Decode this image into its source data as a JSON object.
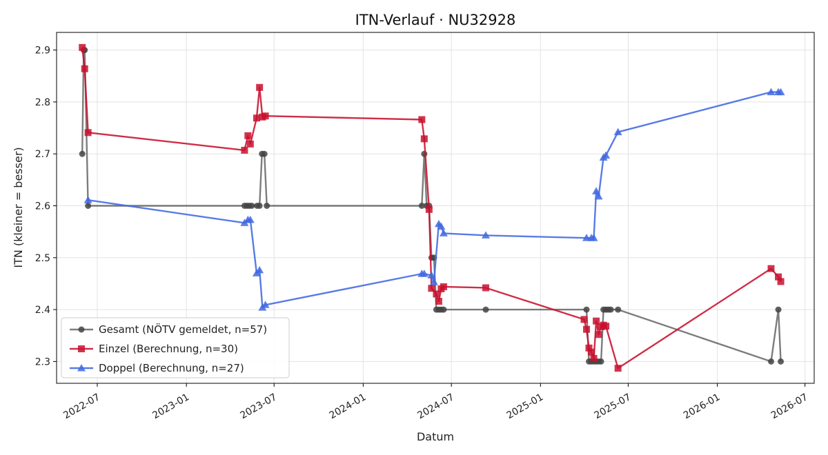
{
  "chart_data": {
    "type": "line",
    "title": "ITN-Verlauf · NU32928",
    "xlabel": "Datum",
    "ylabel": "ITN  (kleiner = besser)",
    "xlim": [
      "2022-04-08",
      "2026-07-20"
    ],
    "ylim": [
      2.258,
      2.934
    ],
    "grid": true,
    "legend_position": "bottom-left",
    "x_ticks": [
      "2022-07",
      "2023-01",
      "2023-07",
      "2024-01",
      "2024-07",
      "2025-01",
      "2025-07",
      "2026-01",
      "2026-07"
    ],
    "y_ticks": [
      "2.3",
      "2.4",
      "2.5",
      "2.6",
      "2.7",
      "2.8",
      "2.9"
    ],
    "series": [
      {
        "name": "Gesamt (NÖTV gemeldet, n=57)",
        "color": "#444444",
        "marker": "circle",
        "x": [
          "2022-05-31",
          "2022-06-03",
          "2022-06-05",
          "2022-06-12",
          "2023-05-01",
          "2023-05-06",
          "2023-05-11",
          "2023-05-16",
          "2023-05-27",
          "2023-06-01",
          "2023-06-06",
          "2023-06-11",
          "2023-06-16",
          "2024-05-01",
          "2024-05-06",
          "2024-05-11",
          "2024-05-16",
          "2024-05-21",
          "2024-05-26",
          "2024-05-31",
          "2024-06-05",
          "2024-06-10",
          "2024-06-15",
          "2024-09-10",
          "2025-04-06",
          "2025-04-11",
          "2025-04-16",
          "2025-04-21",
          "2025-04-26",
          "2025-05-01",
          "2025-05-06",
          "2025-05-11",
          "2025-05-16",
          "2025-05-21",
          "2025-05-26",
          "2025-06-10",
          "2026-04-22",
          "2026-05-07",
          "2026-05-12"
        ],
        "y": [
          2.7,
          2.9,
          2.9,
          2.6,
          2.6,
          2.6,
          2.6,
          2.6,
          2.6,
          2.6,
          2.7,
          2.7,
          2.6,
          2.6,
          2.7,
          2.6,
          2.6,
          2.5,
          2.5,
          2.4,
          2.4,
          2.4,
          2.4,
          2.4,
          2.4,
          2.3,
          2.3,
          2.3,
          2.3,
          2.3,
          2.3,
          2.4,
          2.4,
          2.4,
          2.4,
          2.4,
          2.3,
          2.4,
          2.3
        ]
      },
      {
        "name": "Einzel (Berechnung, n=30)",
        "color": "#c8102e",
        "marker": "square",
        "x": [
          "2022-05-31",
          "2022-06-05",
          "2022-06-12",
          "2023-05-01",
          "2023-05-08",
          "2023-05-13",
          "2023-05-26",
          "2023-06-01",
          "2023-06-07",
          "2023-06-13",
          "2024-05-01",
          "2024-05-06",
          "2024-05-16",
          "2024-05-21",
          "2024-05-31",
          "2024-06-05",
          "2024-06-10",
          "2024-06-15",
          "2024-09-10",
          "2025-04-01",
          "2025-04-06",
          "2025-04-11",
          "2025-04-16",
          "2025-04-21",
          "2025-04-26",
          "2025-05-01",
          "2025-05-06",
          "2025-05-11",
          "2025-05-16",
          "2025-06-10",
          "2026-04-22",
          "2026-05-07",
          "2026-05-12"
        ],
        "y": [
          2.905,
          2.864,
          2.741,
          2.707,
          2.735,
          2.719,
          2.769,
          2.828,
          2.771,
          2.773,
          2.766,
          2.729,
          2.593,
          2.441,
          2.43,
          2.416,
          2.44,
          2.444,
          2.442,
          2.381,
          2.362,
          2.326,
          2.318,
          2.306,
          2.378,
          2.352,
          2.367,
          2.37,
          2.368,
          2.287,
          2.479,
          2.463,
          2.454
        ]
      },
      {
        "name": "Doppel (Berechnung, n=27)",
        "color": "#4169e1",
        "marker": "triangle",
        "x": [
          "2022-06-12",
          "2023-05-01",
          "2023-05-08",
          "2023-05-13",
          "2023-05-26",
          "2023-06-01",
          "2023-06-07",
          "2023-06-13",
          "2024-05-01",
          "2024-05-06",
          "2024-05-21",
          "2024-05-26",
          "2024-06-05",
          "2024-06-10",
          "2024-06-15",
          "2024-09-10",
          "2025-04-06",
          "2025-04-16",
          "2025-04-21",
          "2025-04-26",
          "2025-05-01",
          "2025-05-11",
          "2025-05-16",
          "2025-06-10",
          "2026-04-22",
          "2026-05-07",
          "2026-05-12"
        ],
        "y": [
          2.611,
          2.567,
          2.573,
          2.573,
          2.47,
          2.476,
          2.404,
          2.409,
          2.469,
          2.469,
          2.466,
          2.453,
          2.565,
          2.56,
          2.547,
          2.543,
          2.538,
          2.538,
          2.538,
          2.628,
          2.618,
          2.693,
          2.697,
          2.742,
          2.819,
          2.819,
          2.819
        ]
      }
    ]
  }
}
